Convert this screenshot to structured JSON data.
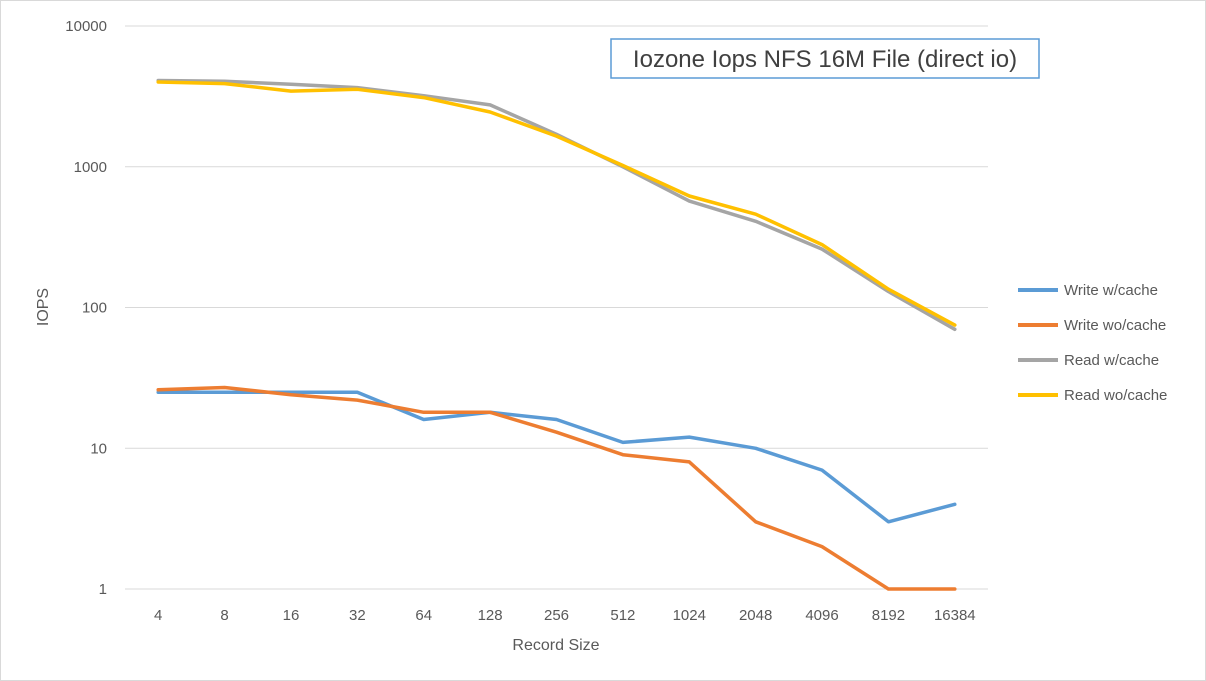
{
  "chart_data": {
    "type": "line",
    "title": "Iozone Iops NFS 16M File (direct io)",
    "xlabel": "Record Size",
    "ylabel": "IOPS",
    "y_scale": "log",
    "ylim": [
      1,
      10000
    ],
    "y_ticks": [
      "1",
      "10",
      "100",
      "1000",
      "10000"
    ],
    "categories": [
      "4",
      "8",
      "16",
      "32",
      "64",
      "128",
      "256",
      "512",
      "1024",
      "2048",
      "4096",
      "8192",
      "16384"
    ],
    "grid": "horizontal",
    "legend_position": "right",
    "series": [
      {
        "name": "Write w/cache",
        "color": "#5b9bd5",
        "values": [
          25,
          25,
          25,
          25,
          16,
          18,
          16,
          11,
          12,
          10,
          7,
          3,
          4
        ]
      },
      {
        "name": "Write wo/cache",
        "color": "#ed7d31",
        "values": [
          26,
          27,
          24,
          22,
          18,
          18,
          13,
          9,
          8,
          3,
          2,
          1,
          1
        ]
      },
      {
        "name": "Read w/cache",
        "color": "#a5a5a5",
        "values": [
          4100,
          4050,
          3850,
          3650,
          3200,
          2750,
          1700,
          1000,
          570,
          410,
          260,
          130,
          70
        ]
      },
      {
        "name": "Read wo/cache",
        "color": "#ffc000",
        "values": [
          4000,
          3900,
          3450,
          3550,
          3100,
          2450,
          1650,
          1020,
          620,
          460,
          280,
          135,
          75
        ]
      }
    ]
  }
}
